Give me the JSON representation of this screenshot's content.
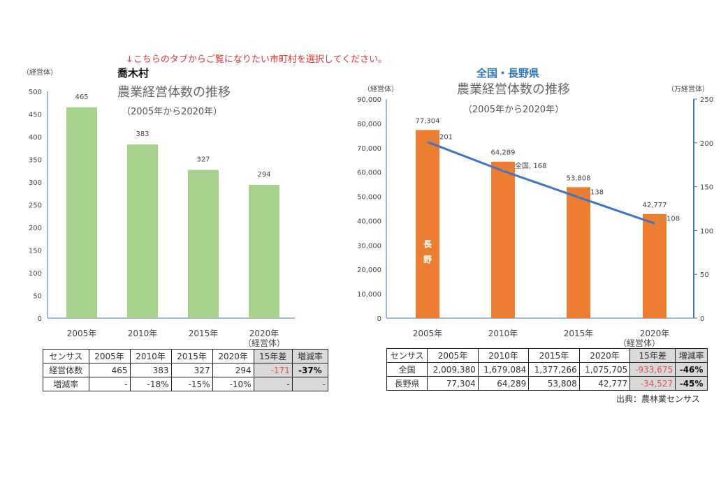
{
  "notice": "↓こちらのタブからご覧になりたい市町村を選択してください。",
  "source": "出典：農林業センサス",
  "chart_data": [
    {
      "type": "bar",
      "heading": "喬木村",
      "title": "農業経営体数の推移",
      "subtitle": "（2005年から2020年）",
      "ylabel": "（経営体）",
      "xlabel": "（経営体）",
      "categories": [
        "2005年",
        "2010年",
        "2015年",
        "2020年"
      ],
      "values": [
        465,
        383,
        327,
        294
      ],
      "ylim": [
        0,
        500
      ],
      "yticks": [
        0,
        50,
        100,
        150,
        200,
        250,
        300,
        350,
        400,
        450,
        500
      ],
      "color": "#a9d18e",
      "grid": false
    },
    {
      "type": "bar+line",
      "heading": "全国・長野県",
      "title": "農業経営体数の推移",
      "subtitle": "（2005年から2020年）",
      "ylabel": "（経営体）",
      "y2label": "（万経営体）",
      "xlabel": "（経営体）",
      "categories": [
        "2005年",
        "2010年",
        "2015年",
        "2020年"
      ],
      "series": [
        {
          "name": "長野",
          "type": "bar",
          "axis": "left",
          "values": [
            77304,
            64289,
            53808,
            42777
          ],
          "labels": [
            "77,304",
            "64,289",
            "53,808",
            "42,777"
          ],
          "color": "#ed7d31"
        },
        {
          "name": "全国",
          "type": "line",
          "axis": "right",
          "values": [
            201,
            168,
            138,
            108
          ],
          "labels": [
            "201",
            "全国, 168",
            "138",
            "108"
          ],
          "color": "#4472c4"
        }
      ],
      "ylim": [
        0,
        90000
      ],
      "yticks": [
        "0",
        "10,000",
        "20,000",
        "30,000",
        "40,000",
        "50,000",
        "60,000",
        "70,000",
        "80,000",
        "90,000"
      ],
      "y2lim": [
        0,
        250
      ],
      "y2ticks": [
        0,
        50,
        100,
        150,
        200,
        250
      ],
      "grid": false
    }
  ],
  "tables": [
    {
      "header": [
        "センサス",
        "2005年",
        "2010年",
        "2015年",
        "2020年",
        "15年差",
        "増減率"
      ],
      "rows": [
        [
          "経営体数",
          "465",
          "383",
          "327",
          "294",
          "-171",
          "-37%"
        ],
        [
          "増減率",
          "-",
          "-18%",
          "-15%",
          "-10%",
          "-",
          "-"
        ]
      ]
    },
    {
      "header": [
        "センサス",
        "2005年",
        "2010年",
        "2015年",
        "2020年",
        "15年差",
        "増減率"
      ],
      "rows": [
        [
          "全国",
          "2,009,380",
          "1,679,084",
          "1,377,266",
          "1,075,705",
          "-933,675",
          "-46%"
        ],
        [
          "長野県",
          "77,304",
          "64,289",
          "53,808",
          "42,777",
          "-34,527",
          "-45%"
        ]
      ]
    }
  ]
}
